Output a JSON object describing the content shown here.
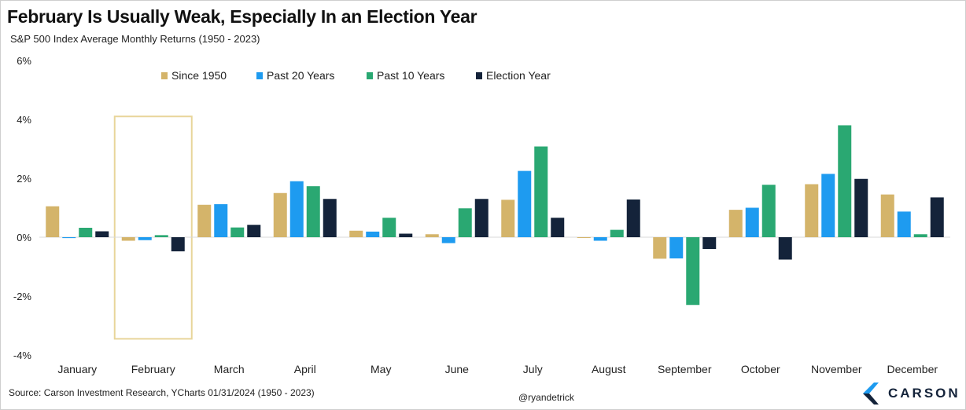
{
  "header": {
    "title": "February Is Usually Weak, Especially In an Election Year",
    "subtitle": "S&P 500 Index Average Monthly Returns (1950 - 2023)"
  },
  "footer": {
    "source": "Source: Carson Investment Research, YCharts 01/31/2024 (1950 - 2023)",
    "handle": "@ryandetrick",
    "brand": "CARSON"
  },
  "colors": {
    "since1950": "#d4b46a",
    "past20": "#1e9bf0",
    "past10": "#2aa872",
    "election": "#14233a",
    "highlight": "#e8d59a"
  },
  "chart_data": {
    "type": "bar",
    "title": "February Is Usually Weak, Especially In an Election Year",
    "subtitle": "S&P 500 Index Average Monthly Returns (1950 - 2023)",
    "xlabel": "",
    "ylabel": "",
    "ylim": [
      -4,
      6
    ],
    "yticks": [
      -4,
      -2,
      0,
      2,
      4,
      6
    ],
    "ytick_labels": [
      "-4%",
      "-2%",
      "0%",
      "2%",
      "4%",
      "6%"
    ],
    "grid": false,
    "legend_position": "top-left",
    "highlight_category": "February",
    "categories": [
      "January",
      "February",
      "March",
      "April",
      "May",
      "June",
      "July",
      "August",
      "September",
      "October",
      "November",
      "December"
    ],
    "series": [
      {
        "name": "Since 1950",
        "color": "#d4b46a",
        "values": [
          1.05,
          -0.12,
          1.1,
          1.5,
          0.22,
          0.1,
          1.27,
          -0.02,
          -0.73,
          0.93,
          1.8,
          1.45
        ]
      },
      {
        "name": "Past 20 Years",
        "color": "#1e9bf0",
        "values": [
          -0.03,
          -0.1,
          1.12,
          1.9,
          0.19,
          -0.2,
          2.25,
          -0.12,
          -0.72,
          1.0,
          2.15,
          0.87
        ]
      },
      {
        "name": "Past 10 Years",
        "color": "#2aa872",
        "values": [
          0.32,
          0.07,
          0.33,
          1.73,
          0.66,
          0.98,
          3.08,
          0.25,
          -2.3,
          1.78,
          3.8,
          0.1
        ]
      },
      {
        "name": "Election Year",
        "color": "#14233a",
        "values": [
          0.2,
          -0.48,
          0.42,
          1.3,
          0.12,
          1.3,
          0.66,
          1.28,
          -0.4,
          -0.76,
          1.98,
          1.35
        ]
      }
    ]
  }
}
